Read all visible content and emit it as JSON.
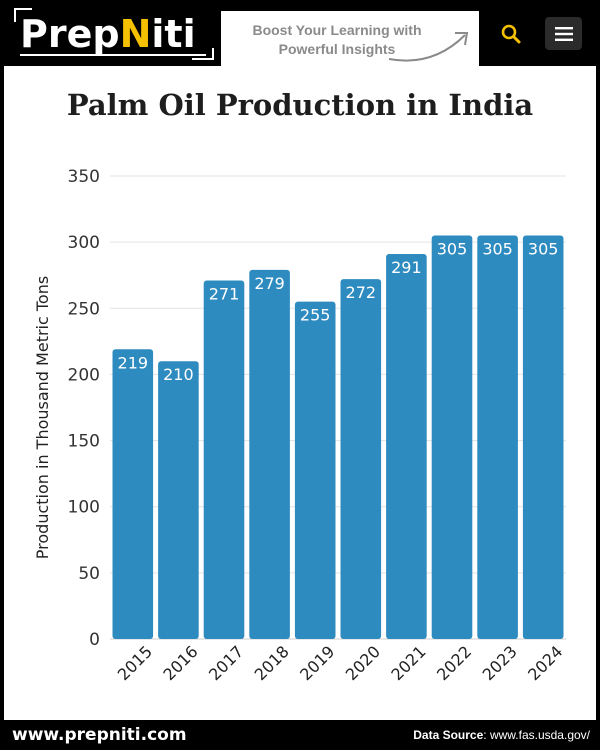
{
  "header": {
    "logo": {
      "prefix": "Prep",
      "accent": "N",
      "suffix": "iti"
    },
    "promo": {
      "line1": "Boost Your Learning  with",
      "line2": "Powerful Insights"
    },
    "search_icon": "search-icon",
    "menu_icon": "hamburger-menu-icon"
  },
  "colors": {
    "bar": "#2e8bc0",
    "accent": "#f5c000",
    "grid": "#e3e3e3"
  },
  "chart_data": {
    "type": "bar",
    "title": "Palm Oil Production in India",
    "xlabel": "",
    "ylabel": "Production in Thousand Metric Tons",
    "categories": [
      "2015",
      "2016",
      "2017",
      "2018",
      "2019",
      "2020",
      "2021",
      "2022",
      "2023",
      "2024"
    ],
    "values": [
      219,
      210,
      271,
      279,
      255,
      272,
      291,
      305,
      305,
      305
    ],
    "ylim": [
      0,
      350
    ],
    "yticks": [
      0,
      50,
      100,
      150,
      200,
      250,
      300,
      350
    ],
    "grid": true,
    "legend": "none"
  },
  "footer": {
    "site": "www.prepniti.com",
    "source_label": "Data Source",
    "source_value": ": www.fas.usda.gov/"
  }
}
